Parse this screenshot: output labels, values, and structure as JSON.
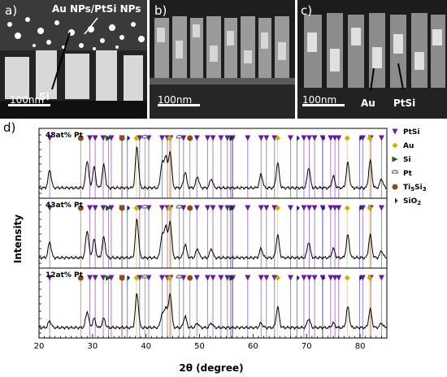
{
  "panels": [
    {
      "label": "a)",
      "annotations": [
        "Au NPs/PtSi NPs",
        "Si"
      ],
      "scale": "100nm"
    },
    {
      "label": "b)",
      "annotations": [],
      "scale": "100nm"
    },
    {
      "label": "c)",
      "annotations": [
        "Au",
        "PtSi"
      ],
      "scale": "100nm"
    }
  ],
  "xrd": {
    "label": "d)",
    "ylabel": "Intensity",
    "xlabel": "2θ (degree)",
    "xlim": [
      20,
      85
    ],
    "xticks": [
      20,
      30,
      40,
      50,
      60,
      70,
      80
    ],
    "subplots": [
      "48at% Pt",
      "43at% Pt",
      "12at% Pt"
    ]
  },
  "legend": [
    {
      "name": "PtSi",
      "marker": "triangle-down",
      "color": "#6a1b9a"
    },
    {
      "name": "Au",
      "marker": "diamond",
      "color": "#c8b400"
    },
    {
      "name": "Si",
      "marker": "triangle-right",
      "color": "#1b5e20"
    },
    {
      "name": "Pt",
      "marker": "half-circle",
      "color": "#555555"
    },
    {
      "name": "Ti5Si3",
      "marker": "circle",
      "color": "#8d4a1a"
    },
    {
      "name": "SiO2",
      "marker": "half-diamond",
      "color": "#1a237e"
    }
  ],
  "chart_data": {
    "type": "line",
    "xlabel": "2θ (degree)",
    "ylabel": "Intensity",
    "xlim": [
      20,
      85
    ],
    "reference_lines": {
      "PtSi": [
        22,
        29.5,
        30.5,
        32,
        33.5,
        35.5,
        38.8,
        40.5,
        43,
        44,
        44.6,
        47,
        49.5,
        51.5,
        52.5,
        54,
        55.2,
        56.2,
        59,
        61.5,
        62.5,
        64,
        67,
        69.5,
        70.5,
        71.5,
        73,
        74.5,
        75.3,
        76,
        80.5,
        82,
        84
      ],
      "Au": [
        38.2,
        44.4,
        64.6,
        77.6,
        81.8
      ],
      "Si": [
        33.0,
        56.1
      ],
      "Pt": [
        39.8,
        46.2
      ],
      "Ti5Si3": [
        27.8,
        35.5,
        48.2
      ],
      "SiO2": [
        36.5,
        55.8,
        68.2,
        73.0,
        79.9
      ]
    },
    "series": [
      {
        "name": "48at% Pt",
        "peaks": [
          [
            22,
            0.4
          ],
          [
            29,
            0.6
          ],
          [
            30.3,
            0.45
          ],
          [
            32.1,
            0.5
          ],
          [
            38.3,
            0.9
          ],
          [
            43,
            0.55
          ],
          [
            43.7,
            0.7
          ],
          [
            44.5,
            0.8
          ],
          [
            47.3,
            0.35
          ],
          [
            49.6,
            0.25
          ],
          [
            52.2,
            0.2
          ],
          [
            61.5,
            0.3
          ],
          [
            64.6,
            0.55
          ],
          [
            70.4,
            0.45
          ],
          [
            75,
            0.25
          ],
          [
            77.7,
            0.55
          ],
          [
            81.9,
            0.6
          ],
          [
            84,
            0.2
          ]
        ]
      },
      {
        "name": "43at% Pt",
        "peaks": [
          [
            22,
            0.35
          ],
          [
            29,
            0.6
          ],
          [
            30.3,
            0.4
          ],
          [
            32.1,
            0.45
          ],
          [
            38.3,
            0.85
          ],
          [
            43,
            0.5
          ],
          [
            43.7,
            0.7
          ],
          [
            44.5,
            0.8
          ],
          [
            47.3,
            0.3
          ],
          [
            49.6,
            0.2
          ],
          [
            52.2,
            0.2
          ],
          [
            61.5,
            0.2
          ],
          [
            64.6,
            0.5
          ],
          [
            70.4,
            0.35
          ],
          [
            75,
            0.2
          ],
          [
            77.7,
            0.5
          ],
          [
            81.9,
            0.5
          ],
          [
            84,
            0.15
          ]
        ]
      },
      {
        "name": "12at% Pt",
        "peaks": [
          [
            22,
            0.15
          ],
          [
            29,
            0.35
          ],
          [
            30.3,
            0.2
          ],
          [
            32.1,
            0.2
          ],
          [
            38.3,
            0.75
          ],
          [
            43,
            0.3
          ],
          [
            43.7,
            0.45
          ],
          [
            44.5,
            0.75
          ],
          [
            47.3,
            0.25
          ],
          [
            49.6,
            0.1
          ],
          [
            52.2,
            0.1
          ],
          [
            61.5,
            0.1
          ],
          [
            64.6,
            0.45
          ],
          [
            70.4,
            0.2
          ],
          [
            75,
            0.1
          ],
          [
            77.7,
            0.45
          ],
          [
            81.9,
            0.4
          ],
          [
            84,
            0.1
          ]
        ]
      }
    ]
  }
}
